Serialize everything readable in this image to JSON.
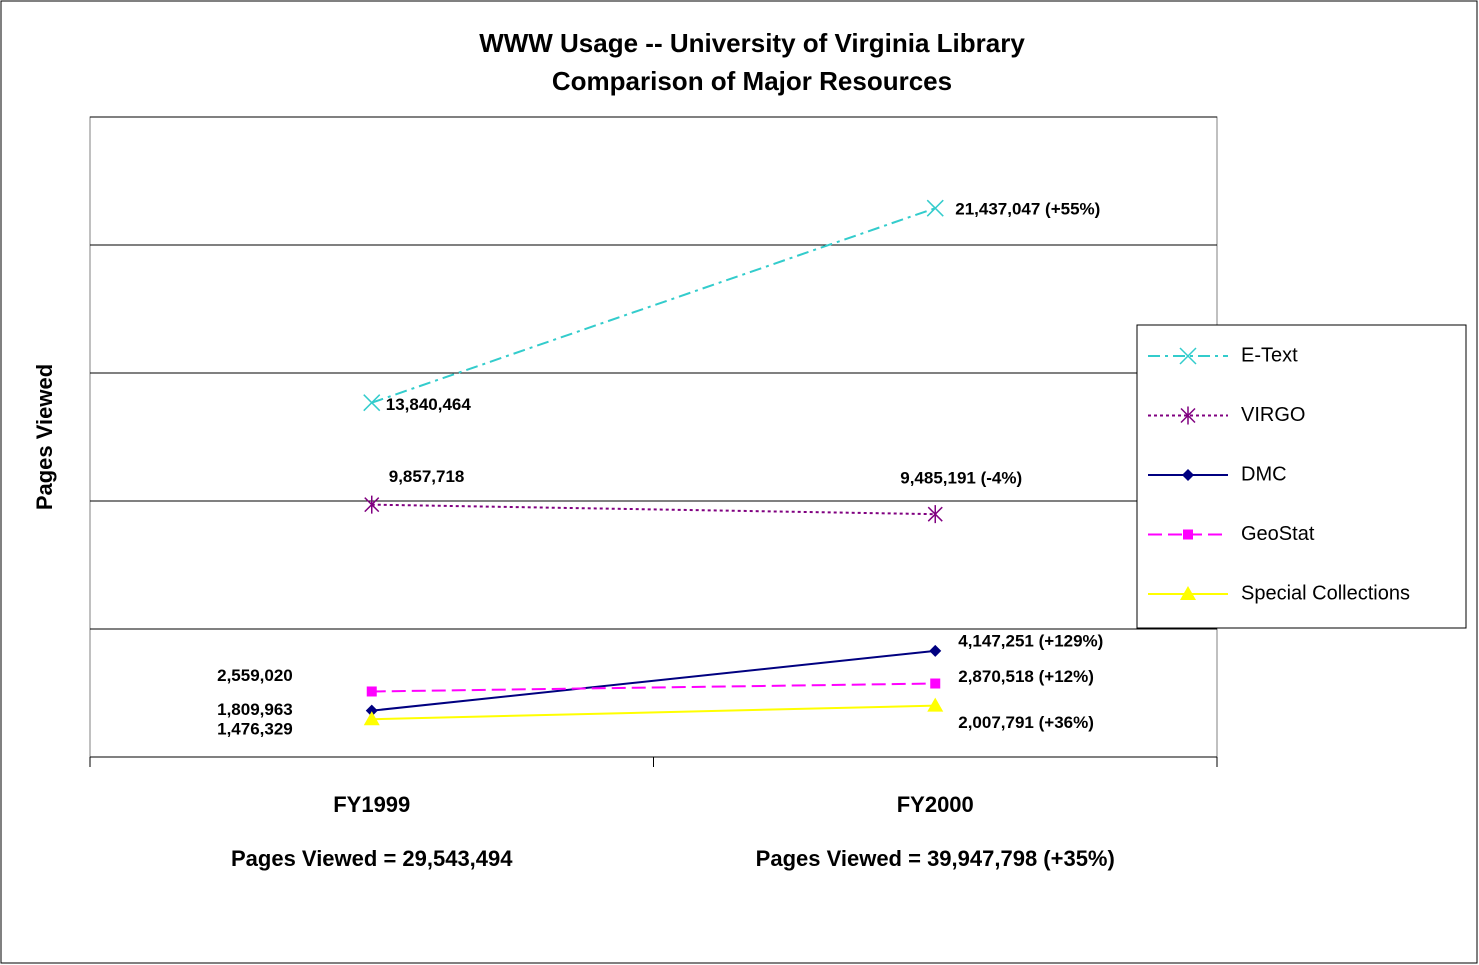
{
  "chart_data": {
    "type": "line",
    "title": [
      "WWW Usage -- University of Virginia Library",
      "Comparison of Major Resources"
    ],
    "y_label": "Pages Viewed",
    "categories": [
      "FY1999",
      "FY2000"
    ],
    "category_notes": [
      "Pages Viewed = 29,543,494",
      "Pages Viewed = 39,947,798 (+35%)"
    ],
    "ylim": [
      0,
      25000000
    ],
    "yticks": [
      0,
      5000000,
      10000000,
      15000000,
      20000000,
      25000000
    ],
    "grid": true,
    "legend": "right",
    "series": [
      {
        "name": "E-Text",
        "color": "#33cccc",
        "marker": "x",
        "line_style": "dashdot",
        "values": [
          13840464,
          21437047
        ],
        "value_labels": [
          "13,840,464",
          "21,437,047 (+55%)"
        ]
      },
      {
        "name": "VIRGO",
        "color": "#800080",
        "marker": "asterisk",
        "line_style": "dotted",
        "values": [
          9857718,
          9485191
        ],
        "value_labels": [
          "9,857,718",
          "9,485,191 (-4%)"
        ]
      },
      {
        "name": "DMC",
        "color": "#000080",
        "marker": "diamond",
        "line_style": "solid",
        "values": [
          1809963,
          4147251
        ],
        "value_labels": [
          "1,809,963",
          "4,147,251 (+129%)"
        ]
      },
      {
        "name": "GeoStat",
        "color": "#ff00ff",
        "marker": "square",
        "line_style": "dashed",
        "values": [
          2559020,
          2870518
        ],
        "value_labels": [
          "2,559,020",
          "2,870,518 (+12%)"
        ]
      },
      {
        "name": "Special Collections",
        "color": "#ffff00",
        "marker": "triangle",
        "line_style": "solid",
        "values": [
          1476329,
          2007791
        ],
        "value_labels": [
          "1,476,329",
          "2,007,791 (+36%)"
        ]
      }
    ]
  }
}
